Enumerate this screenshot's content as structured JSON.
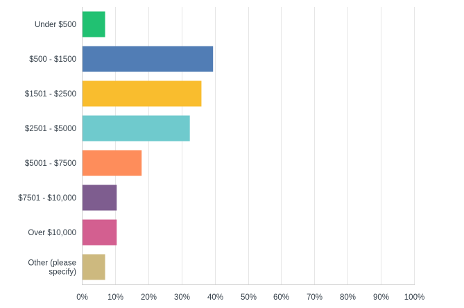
{
  "chart_data": {
    "type": "bar",
    "orientation": "horizontal",
    "categories": [
      [
        "Under $500"
      ],
      [
        "$500 - $1500"
      ],
      [
        "$1501 - $2500"
      ],
      [
        "$2501 - $5000"
      ],
      [
        "$5001 - $7500"
      ],
      [
        "$7501 - $10,000"
      ],
      [
        "Over $10,000"
      ],
      [
        "Other (please",
        "specify)"
      ]
    ],
    "values": [
      7,
      39.5,
      36,
      32.5,
      18,
      10.5,
      10.5,
      7
    ],
    "colors": [
      "#21c172",
      "#517db5",
      "#f9bd2e",
      "#6fcacd",
      "#fe8d5b",
      "#7e5d8f",
      "#d35f90",
      "#cdb97f"
    ],
    "xlim": [
      0,
      100
    ],
    "x_ticks": [
      "0%",
      "10%",
      "20%",
      "30%",
      "40%",
      "50%",
      "60%",
      "70%",
      "80%",
      "90%",
      "100%"
    ],
    "grid": true,
    "title": "",
    "xlabel": "",
    "ylabel": ""
  }
}
